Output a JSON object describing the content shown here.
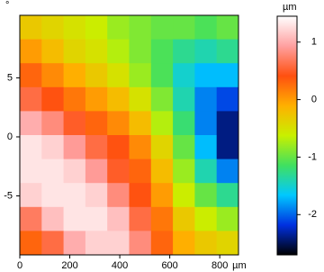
{
  "chart_data": {
    "type": "heatmap",
    "x_unit": "µm",
    "y_unit": "°",
    "colorbar_label": "µm",
    "xlim": [
      0,
      875
    ],
    "ylim": [
      -10,
      10.3
    ],
    "xticks": [
      0,
      200,
      400,
      600,
      800
    ],
    "yticks": [
      5,
      0,
      -5
    ],
    "clim": [
      -2.7,
      1.45
    ],
    "cticks": [
      1,
      0,
      -1,
      -2
    ],
    "colormap": [
      "#000000",
      "#0030e0",
      "#00c8ff",
      "#40e060",
      "#c8f000",
      "#ffb000",
      "#ff5010",
      "#ffa0a0",
      "#ffffff"
    ],
    "values": [
      [
        -0.3,
        -0.4,
        -0.5,
        -0.6,
        -0.8,
        -0.9,
        -1.0,
        -1.0,
        -1.1,
        -1.0
      ],
      [
        0,
        -0.2,
        -0.4,
        -0.5,
        -0.7,
        -0.9,
        -1.1,
        -1.3,
        -1.4,
        -1.3
      ],
      [
        0.3,
        0.1,
        -0.1,
        -0.3,
        -0.5,
        -0.8,
        -1.1,
        -1.5,
        -1.7,
        -1.7
      ],
      [
        0.6,
        0.4,
        0.2,
        0,
        -0.2,
        -0.5,
        -0.9,
        -1.4,
        -1.9,
        -2.1
      ],
      [
        1.0,
        0.8,
        0.5,
        0.3,
        0.1,
        -0.2,
        -0.7,
        -1.2,
        -1.9,
        -2.4
      ],
      [
        1.3,
        1.2,
        0.9,
        0.6,
        0.4,
        0.1,
        -0.4,
        -1.0,
        -1.7,
        -2.4
      ],
      [
        1.3,
        1.3,
        1.2,
        0.9,
        0.5,
        0.3,
        -0.2,
        -0.8,
        -1.4,
        -1.9
      ],
      [
        1.2,
        1.3,
        1.3,
        1.2,
        0.8,
        0.4,
        0,
        -0.6,
        -1.0,
        -1.3
      ],
      [
        0.7,
        1.1,
        1.3,
        1.3,
        1.1,
        0.6,
        0.2,
        -0.3,
        -0.6,
        -0.8
      ],
      [
        0.3,
        0.6,
        1.0,
        1.2,
        1.2,
        0.8,
        0.3,
        -0.1,
        -0.3,
        -0.4
      ]
    ]
  }
}
